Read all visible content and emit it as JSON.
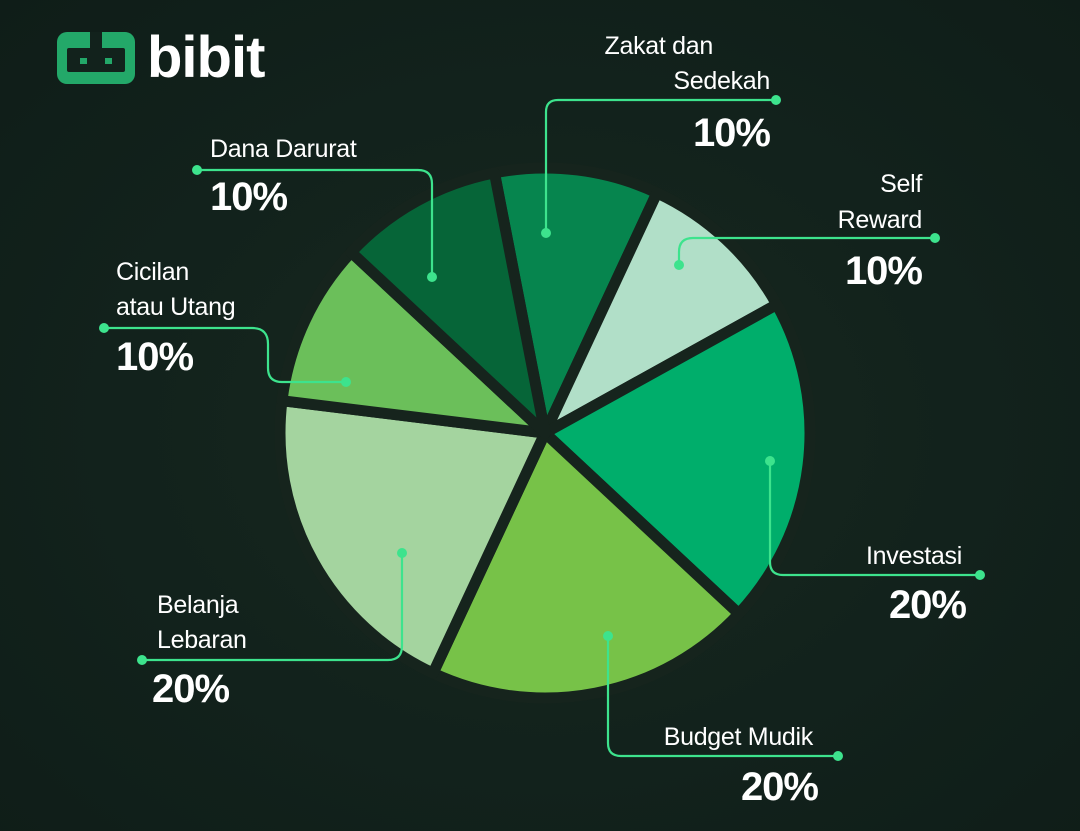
{
  "brand": {
    "name": "bibit",
    "accent": "#3de38d"
  },
  "chart_data": {
    "type": "pie",
    "slices": [
      {
        "label_lines": [
          "Zakat dan",
          "Sedekah"
        ],
        "value": 10,
        "value_label": "10%",
        "color": "#06854e"
      },
      {
        "label_lines": [
          "Self",
          "Reward"
        ],
        "value": 10,
        "value_label": "10%",
        "color": "#b1dfc8"
      },
      {
        "label_lines": [
          "Investasi"
        ],
        "value": 20,
        "value_label": "20%",
        "color": "#00ae6b"
      },
      {
        "label_lines": [
          "Budget Mudik"
        ],
        "value": 20,
        "value_label": "20%",
        "color": "#77c248"
      },
      {
        "label_lines": [
          "Belanja",
          "Lebaran"
        ],
        "value": 20,
        "value_label": "20%",
        "color": "#a4d49f"
      },
      {
        "label_lines": [
          "Cicilan",
          "atau Utang"
        ],
        "value": 10,
        "value_label": "10%",
        "color": "#6bbf5a"
      },
      {
        "label_lines": [
          "Dana Darurat"
        ],
        "value": 10,
        "value_label": "10%",
        "color": "#066538"
      }
    ],
    "start_angle_deg": -101,
    "separator_color": "#16241d",
    "connector_color": "#3de38d"
  }
}
